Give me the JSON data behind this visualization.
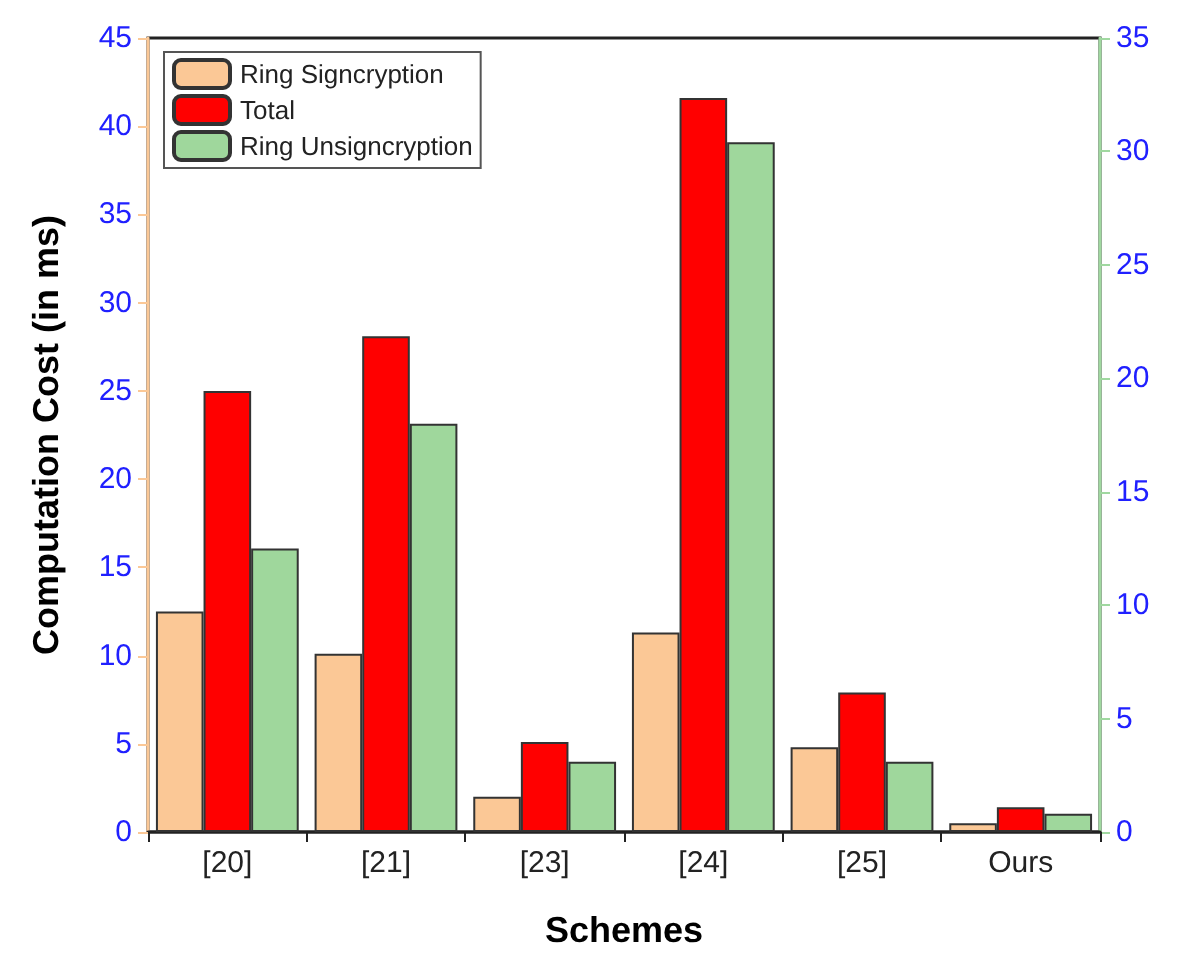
{
  "chart_data": {
    "type": "bar",
    "xlabel": "Schemes",
    "ylabel": "Computation Cost (in ms)",
    "categories": [
      "[20]",
      "[21]",
      "[23]",
      "[24]",
      "[25]",
      "Ours"
    ],
    "series": [
      {
        "name": "Ring Signcryption",
        "color": "#fbc896",
        "values": [
          12.5,
          10.1,
          2.0,
          11.3,
          4.8,
          0.5
        ]
      },
      {
        "name": "Total",
        "color": "#ff0000",
        "values": [
          25,
          28.1,
          5.1,
          41.6,
          7.9,
          1.4
        ]
      },
      {
        "name": "Ring Unsigncryption",
        "color": "#9fd79c",
        "axis": "y2",
        "values": [
          12.5,
          18.0,
          3.1,
          30.4,
          3.1,
          0.8
        ]
      }
    ],
    "ylim": [
      0,
      45
    ],
    "yticks": [
      0,
      5,
      10,
      15,
      20,
      25,
      30,
      35,
      40,
      45
    ],
    "y2lim": [
      0,
      35
    ],
    "y2ticks": [
      0,
      5,
      10,
      15,
      20,
      25,
      30,
      35
    ],
    "grid": false,
    "legend": "top left"
  }
}
